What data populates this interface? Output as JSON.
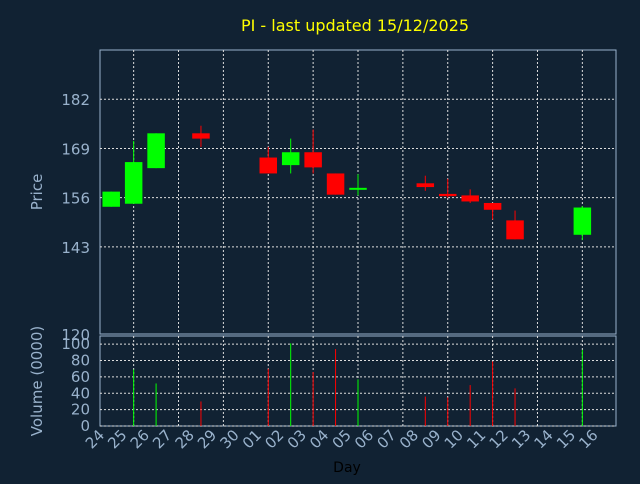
{
  "chart_data": {
    "type": "candlestick",
    "title": "PI - last updated 15/12/2025",
    "xlabel": "Day",
    "price_ylabel": "Price",
    "volume_ylabel": "Volume (0000)",
    "x_ticks": [
      "24",
      "25",
      "26",
      "27",
      "28",
      "29",
      "30",
      "01",
      "02",
      "03",
      "04",
      "05",
      "06",
      "07",
      "08",
      "09",
      "10",
      "11",
      "12",
      "13",
      "14",
      "15",
      "16"
    ],
    "price_yticks": [
      120,
      143,
      156,
      169,
      182
    ],
    "price_ylim": [
      120,
      195
    ],
    "volume_yticks": [
      0,
      20,
      40,
      60,
      80,
      100
    ],
    "volume_ylim": [
      0,
      110
    ],
    "grid": true,
    "colors": {
      "background": "#112233",
      "up": "#00ff00",
      "down": "#ff0000",
      "title": "#ffff00",
      "axis_text": "#99b2cc",
      "frame": "#99b2cc",
      "grid": "#dddddd"
    },
    "candles": [
      {
        "day": "24",
        "open": 153.6,
        "close": 157.6,
        "high": 157.6,
        "low": 153.6,
        "volume": 0
      },
      {
        "day": "25",
        "open": 154.4,
        "close": 165.4,
        "high": 171.0,
        "low": 154.4,
        "volume": 69
      },
      {
        "day": "26",
        "open": 163.8,
        "close": 173.0,
        "high": 173.0,
        "low": 163.8,
        "volume": 52
      },
      {
        "day": "28",
        "open": 173.0,
        "close": 171.6,
        "high": 175.0,
        "low": 169.4,
        "volume": 30
      },
      {
        "day": "01",
        "open": 166.6,
        "close": 162.4,
        "high": 169.4,
        "low": 162.4,
        "volume": 70
      },
      {
        "day": "02",
        "open": 164.6,
        "close": 168.0,
        "high": 171.6,
        "low": 162.4,
        "volume": 101
      },
      {
        "day": "03",
        "open": 168.0,
        "close": 164.0,
        "high": 174.0,
        "low": 162.4,
        "volume": 66
      },
      {
        "day": "04",
        "open": 162.4,
        "close": 156.8,
        "high": 162.4,
        "low": 156.8,
        "volume": 94
      },
      {
        "day": "05",
        "open": 158.2,
        "close": 158.6,
        "high": 162.2,
        "low": 156.6,
        "volume": 57
      },
      {
        "day": "08",
        "open": 159.8,
        "close": 158.8,
        "high": 161.8,
        "low": 157.8,
        "volume": 36
      },
      {
        "day": "09",
        "open": 157.0,
        "close": 156.4,
        "high": 161.0,
        "low": 156.0,
        "volume": 35
      },
      {
        "day": "10",
        "open": 156.6,
        "close": 155.0,
        "high": 158.2,
        "low": 154.6,
        "volume": 50
      },
      {
        "day": "11",
        "open": 154.6,
        "close": 152.8,
        "high": 154.6,
        "low": 150.2,
        "volume": 79
      },
      {
        "day": "12",
        "open": 150.0,
        "close": 145.0,
        "high": 152.6,
        "low": 145.0,
        "volume": 46
      },
      {
        "day": "15",
        "open": 146.2,
        "close": 153.4,
        "high": 153.8,
        "low": 144.8,
        "volume": 93
      }
    ]
  }
}
